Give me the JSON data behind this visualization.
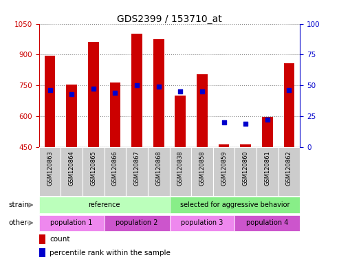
{
  "title": "GDS2399 / 153710_at",
  "samples": [
    "GSM120863",
    "GSM120864",
    "GSM120865",
    "GSM120866",
    "GSM120867",
    "GSM120868",
    "GSM120838",
    "GSM120858",
    "GSM120859",
    "GSM120860",
    "GSM120861",
    "GSM120862"
  ],
  "counts": [
    893,
    755,
    960,
    762,
    1000,
    975,
    700,
    805,
    462,
    462,
    597,
    858
  ],
  "percentile_ranks": [
    46,
    43,
    47,
    44,
    50,
    49,
    45,
    45,
    20,
    19,
    22,
    46
  ],
  "ylim_left": [
    450,
    1050
  ],
  "ylim_right": [
    0,
    100
  ],
  "yticks_left": [
    450,
    600,
    750,
    900,
    1050
  ],
  "yticks_right": [
    0,
    25,
    50,
    75,
    100
  ],
  "bar_color": "#cc0000",
  "dot_color": "#0000cc",
  "bar_bottom": 450,
  "strain_groups": [
    {
      "label": "reference",
      "start": 0,
      "end": 6,
      "color": "#bbffbb"
    },
    {
      "label": "selected for aggressive behavior",
      "start": 6,
      "end": 12,
      "color": "#88ee88"
    }
  ],
  "other_groups": [
    {
      "label": "population 1",
      "start": 0,
      "end": 3,
      "color": "#ee88ee"
    },
    {
      "label": "population 2",
      "start": 3,
      "end": 6,
      "color": "#cc55cc"
    },
    {
      "label": "population 3",
      "start": 6,
      "end": 9,
      "color": "#ee88ee"
    },
    {
      "label": "population 4",
      "start": 9,
      "end": 12,
      "color": "#cc55cc"
    }
  ],
  "strain_label": "strain",
  "other_label": "other",
  "legend_count_label": "count",
  "legend_pct_label": "percentile rank within the sample",
  "grid_color": "#888888",
  "xtick_bg_color": "#cccccc",
  "fig_width": 4.93,
  "fig_height": 3.84,
  "dpi": 100
}
